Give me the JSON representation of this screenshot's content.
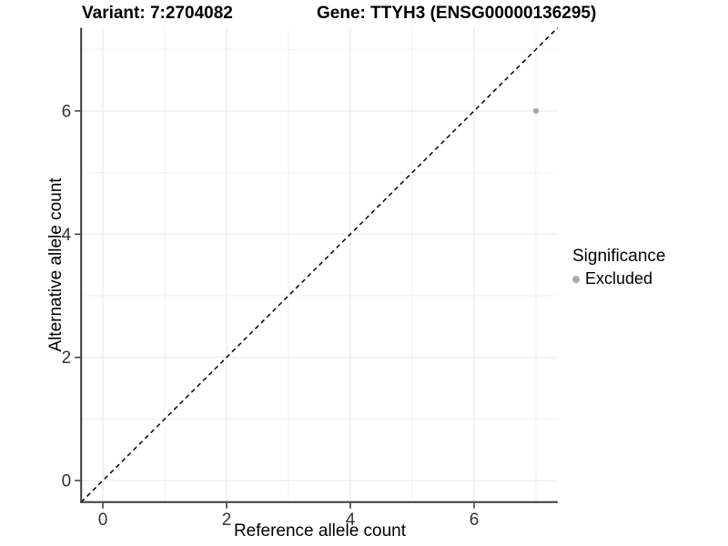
{
  "chart_data": {
    "type": "scatter",
    "titles": {
      "variant": "Variant: 7:2704082",
      "gene": "Gene: TTYH3 (ENSG00000136295)"
    },
    "xlabel": "Reference allele count",
    "ylabel": "Alternative allele count",
    "xlim": [
      -0.35,
      7.35
    ],
    "ylim": [
      -0.35,
      7.35
    ],
    "x_ticks": [
      0,
      2,
      4,
      6
    ],
    "y_ticks": [
      0,
      2,
      4,
      6
    ],
    "x_minor_gridlines": [
      1,
      3,
      5,
      7
    ],
    "y_minor_gridlines": [
      1,
      3,
      5,
      7
    ],
    "grid": true,
    "identity_line": {
      "equation": "y = x",
      "style": "dashed",
      "from": [
        -0.35,
        -0.35
      ],
      "to": [
        7.35,
        7.35
      ]
    },
    "points": [
      {
        "x": 7,
        "y": 6,
        "significance": "Excluded"
      }
    ],
    "legend": {
      "title": "Significance",
      "position": "right",
      "items": [
        {
          "label": "Excluded",
          "color": "#aaaaaa",
          "marker": "circle"
        }
      ]
    },
    "colors": {
      "point": "#aaaaaa",
      "axis_line": "#3a3a3a",
      "tick_mark": "#333333",
      "tick_label": "#333333",
      "grid_major": "#e6e6e6",
      "grid_minor": "#f2f2f2",
      "identity_line": "#000000",
      "background": "#ffffff"
    }
  }
}
